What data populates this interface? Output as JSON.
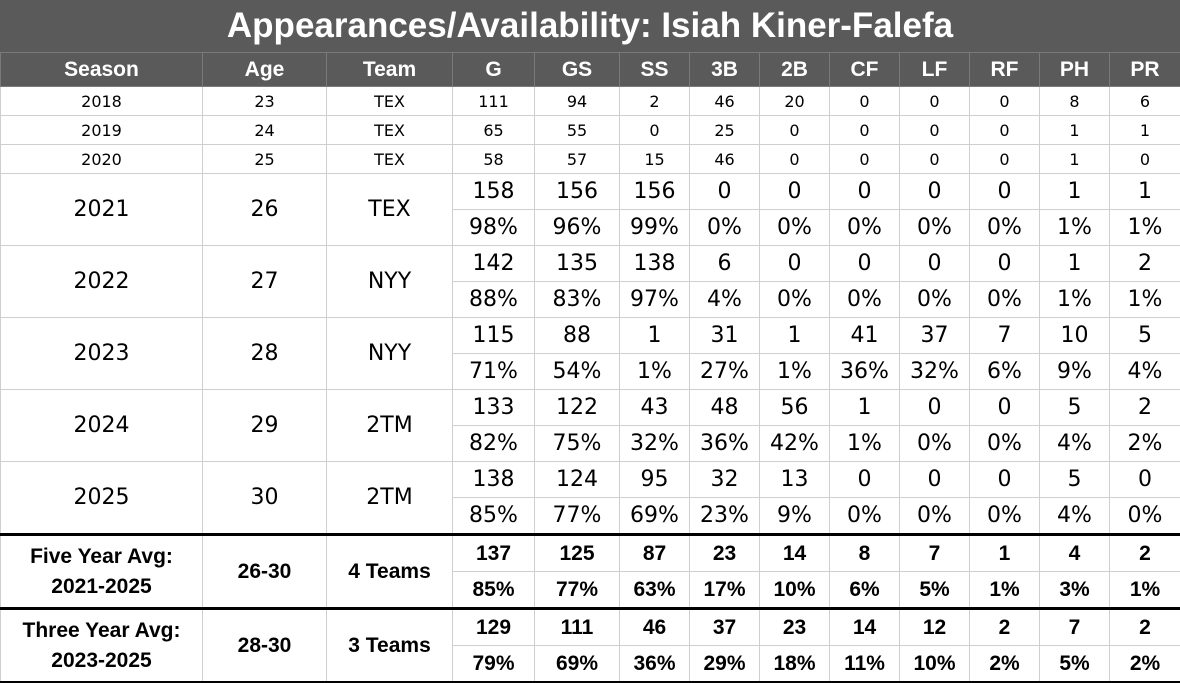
{
  "title": "Appearances/Availability: Isiah Kiner-Falefa",
  "chart_data": {
    "type": "table",
    "columns": [
      "Season",
      "Age",
      "Team",
      "G",
      "GS",
      "SS",
      "3B",
      "2B",
      "CF",
      "LF",
      "RF",
      "PH",
      "PR"
    ],
    "minor_rows": [
      {
        "season": "2018",
        "age": "23",
        "team": "TEX",
        "values": [
          "111",
          "94",
          "2",
          "46",
          "20",
          "0",
          "0",
          "0",
          "8",
          "6"
        ]
      },
      {
        "season": "2019",
        "age": "24",
        "team": "TEX",
        "values": [
          "65",
          "55",
          "0",
          "25",
          "0",
          "0",
          "0",
          "0",
          "1",
          "1"
        ]
      },
      {
        "season": "2020",
        "age": "25",
        "team": "TEX",
        "values": [
          "58",
          "57",
          "15",
          "46",
          "0",
          "0",
          "0",
          "0",
          "1",
          "0"
        ]
      }
    ],
    "main_rows": [
      {
        "season": "2021",
        "age": "26",
        "team": "TEX",
        "counts": [
          "158",
          "156",
          "156",
          "0",
          "0",
          "0",
          "0",
          "0",
          "1",
          "1"
        ],
        "pcts": [
          "98%",
          "96%",
          "99%",
          "0%",
          "0%",
          "0%",
          "0%",
          "0%",
          "1%",
          "1%"
        ]
      },
      {
        "season": "2022",
        "age": "27",
        "team": "NYY",
        "counts": [
          "142",
          "135",
          "138",
          "6",
          "0",
          "0",
          "0",
          "0",
          "1",
          "2"
        ],
        "pcts": [
          "88%",
          "83%",
          "97%",
          "4%",
          "0%",
          "0%",
          "0%",
          "0%",
          "1%",
          "1%"
        ]
      },
      {
        "season": "2023",
        "age": "28",
        "team": "NYY",
        "counts": [
          "115",
          "88",
          "1",
          "31",
          "1",
          "41",
          "37",
          "7",
          "10",
          "5"
        ],
        "pcts": [
          "71%",
          "54%",
          "1%",
          "27%",
          "1%",
          "36%",
          "32%",
          "6%",
          "9%",
          "4%"
        ]
      },
      {
        "season": "2024",
        "age": "29",
        "team": "2TM",
        "counts": [
          "133",
          "122",
          "43",
          "48",
          "56",
          "1",
          "0",
          "0",
          "5",
          "2"
        ],
        "pcts": [
          "82%",
          "75%",
          "32%",
          "36%",
          "42%",
          "1%",
          "0%",
          "0%",
          "4%",
          "2%"
        ]
      },
      {
        "season": "2025",
        "age": "30",
        "team": "2TM",
        "counts": [
          "138",
          "124",
          "95",
          "32",
          "13",
          "0",
          "0",
          "0",
          "5",
          "0"
        ],
        "pcts": [
          "85%",
          "77%",
          "69%",
          "23%",
          "9%",
          "0%",
          "0%",
          "0%",
          "4%",
          "0%"
        ]
      }
    ],
    "avg_rows": [
      {
        "label_line1": "Five Year Avg:",
        "label_line2": "2021-2025",
        "age": "26-30",
        "team": "4 Teams",
        "counts": [
          "137",
          "125",
          "87",
          "23",
          "14",
          "8",
          "7",
          "1",
          "4",
          "2"
        ],
        "pcts": [
          "85%",
          "77%",
          "63%",
          "17%",
          "10%",
          "6%",
          "5%",
          "1%",
          "3%",
          "1%"
        ]
      },
      {
        "label_line1": "Three Year Avg:",
        "label_line2": "2023-2025",
        "age": "28-30",
        "team": "3 Teams",
        "counts": [
          "129",
          "111",
          "46",
          "37",
          "23",
          "14",
          "12",
          "2",
          "7",
          "2"
        ],
        "pcts": [
          "79%",
          "69%",
          "36%",
          "29%",
          "18%",
          "11%",
          "10%",
          "2%",
          "5%",
          "2%"
        ]
      }
    ]
  }
}
